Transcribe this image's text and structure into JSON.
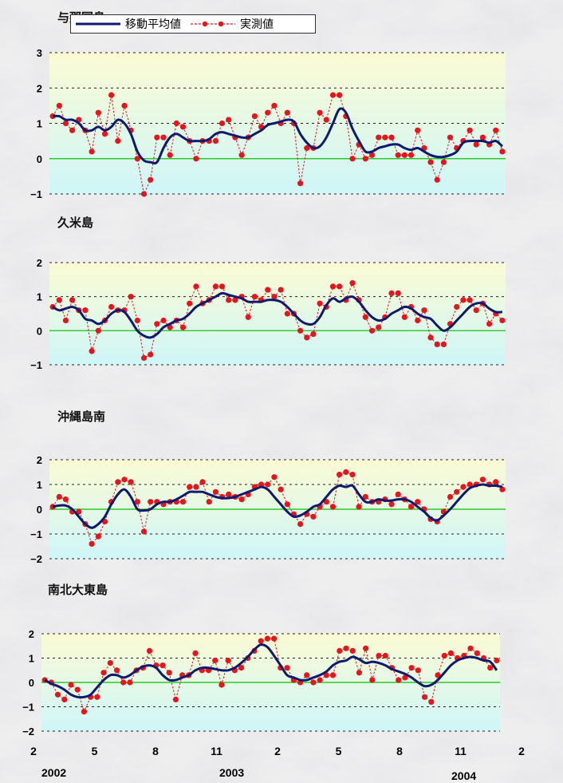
{
  "legend": {
    "moving_label": "移動平均値",
    "observed_label": "実測値",
    "moving_color": "#0d1a6e",
    "observed_color": "#e8141c"
  },
  "colors": {
    "plot_top": "#fbfbd4",
    "plot_bottom": "#cff6f8",
    "zero_line": "#2ec82e",
    "grid": "#222222"
  },
  "x_axis": {
    "tick_labels": [
      "2",
      "5",
      "8",
      "11",
      "2",
      "5",
      "8",
      "11",
      "2"
    ],
    "years": [
      "2002",
      "2003",
      "2004"
    ]
  },
  "chart_data": [
    {
      "type": "line",
      "title": "与那国島",
      "ylim": [
        -1,
        3
      ],
      "y_ticks": [
        -1,
        0,
        1,
        2,
        3
      ],
      "grid": true,
      "x_unit": "months from Feb 2002",
      "series": [
        {
          "name": "実測値",
          "values": [
            1.2,
            1.5,
            1.0,
            0.8,
            1.1,
            0.8,
            0.2,
            1.3,
            0.7,
            1.8,
            0.5,
            1.5,
            0.8,
            0.0,
            -1.0,
            -0.6,
            0.6,
            0.6,
            0.1,
            1.0,
            0.9,
            0.5,
            0.0,
            0.5,
            0.5,
            0.5,
            1.0,
            1.1,
            0.6,
            0.1,
            0.6,
            1.2,
            0.9,
            1.3,
            1.5,
            1.0,
            1.3,
            1.0,
            -0.7,
            0.3,
            0.3,
            1.3,
            1.1,
            1.8,
            1.8,
            1.2,
            0.0,
            0.4,
            0.0,
            0.1,
            0.6,
            0.6,
            0.6,
            0.1,
            0.1,
            0.1,
            0.8,
            0.3,
            -0.1,
            -0.6,
            -0.1,
            0.6,
            0.3,
            0.5,
            0.8,
            0.4,
            0.6,
            0.4,
            0.8,
            0.2
          ]
        },
        {
          "name": "移動平均値",
          "values": [
            1.2,
            1.2,
            1.1,
            1.1,
            1.0,
            0.8,
            0.8,
            0.9,
            0.8,
            0.9,
            1.1,
            1.0,
            0.7,
            0.2,
            -0.05,
            -0.1,
            -0.1,
            0.3,
            0.6,
            0.7,
            0.6,
            0.5,
            0.5,
            0.5,
            0.55,
            0.7,
            0.75,
            0.7,
            0.65,
            0.6,
            0.6,
            0.7,
            0.8,
            0.95,
            1.0,
            1.05,
            1.1,
            1.05,
            0.7,
            0.45,
            0.3,
            0.35,
            0.6,
            1.0,
            1.4,
            1.3,
            0.85,
            0.5,
            0.2,
            0.2,
            0.3,
            0.35,
            0.4,
            0.4,
            0.3,
            0.25,
            0.3,
            0.2,
            0.1,
            0.05,
            0.05,
            0.1,
            0.2,
            0.45,
            0.5,
            0.5,
            0.5,
            0.45,
            0.5,
            0.35
          ]
        }
      ]
    },
    {
      "type": "line",
      "title": "久米島",
      "ylim": [
        -1,
        2
      ],
      "y_ticks": [
        -1,
        0,
        1,
        2
      ],
      "grid": true,
      "x_unit": "months from Feb 2002",
      "series": [
        {
          "name": "実測値",
          "values": [
            0.7,
            0.9,
            0.3,
            0.9,
            0.6,
            0.6,
            -0.6,
            0.0,
            0.3,
            0.7,
            0.6,
            0.6,
            1.0,
            0.3,
            -0.8,
            -0.7,
            0.2,
            0.3,
            0.1,
            0.3,
            0.1,
            0.8,
            1.3,
            0.8,
            0.9,
            1.3,
            1.3,
            0.9,
            0.9,
            1.0,
            0.4,
            1.0,
            0.9,
            1.2,
            1.0,
            1.2,
            0.5,
            0.5,
            0.0,
            -0.2,
            -0.1,
            0.8,
            0.7,
            1.3,
            1.3,
            0.9,
            1.4,
            0.9,
            0.4,
            0.0,
            0.1,
            0.4,
            1.1,
            1.1,
            0.4,
            0.7,
            0.3,
            0.6,
            -0.2,
            -0.4,
            -0.4,
            0.2,
            0.7,
            0.9,
            0.9,
            0.6,
            0.8,
            0.2,
            0.5,
            0.3
          ]
        },
        {
          "name": "移動平均値",
          "values": [
            0.7,
            0.6,
            0.65,
            0.7,
            0.6,
            0.35,
            0.3,
            0.2,
            0.3,
            0.5,
            0.6,
            0.55,
            0.3,
            0.0,
            -0.15,
            -0.2,
            -0.1,
            0.1,
            0.2,
            0.3,
            0.35,
            0.5,
            0.7,
            0.8,
            0.9,
            1.0,
            1.1,
            1.05,
            1.0,
            0.95,
            0.85,
            0.85,
            0.85,
            0.9,
            0.9,
            0.85,
            0.7,
            0.5,
            0.3,
            0.2,
            0.2,
            0.4,
            0.75,
            0.95,
            0.85,
            0.95,
            1.0,
            0.85,
            0.6,
            0.4,
            0.3,
            0.35,
            0.5,
            0.6,
            0.7,
            0.65,
            0.5,
            0.4,
            0.35,
            0.15,
            0.0,
            0.1,
            0.3,
            0.5,
            0.7,
            0.8,
            0.8,
            0.65,
            0.55,
            0.55
          ]
        }
      ]
    },
    {
      "type": "line",
      "title": "沖縄島南",
      "ylim": [
        -2,
        2
      ],
      "y_ticks": [
        -2,
        -1,
        0,
        1,
        2
      ],
      "grid": true,
      "x_unit": "months from Feb 2002",
      "series": [
        {
          "name": "実測値",
          "values": [
            0.1,
            0.5,
            0.4,
            -0.1,
            -0.1,
            -0.6,
            -1.4,
            -1.1,
            -0.5,
            0.3,
            1.1,
            1.2,
            1.1,
            0.3,
            -0.9,
            0.3,
            0.3,
            0.2,
            0.3,
            0.3,
            0.3,
            0.9,
            0.9,
            1.1,
            0.3,
            0.7,
            0.5,
            0.6,
            0.5,
            0.4,
            0.6,
            0.9,
            1.0,
            1.0,
            1.3,
            0.8,
            0.2,
            -0.2,
            -0.6,
            -0.2,
            -0.3,
            0.1,
            0.3,
            0.1,
            1.4,
            1.5,
            1.4,
            0.1,
            0.5,
            0.3,
            0.3,
            0.4,
            0.2,
            0.6,
            0.4,
            0.1,
            0.3,
            0.0,
            -0.4,
            -0.5,
            -0.1,
            0.5,
            0.7,
            0.9,
            1.0,
            1.0,
            1.2,
            1.0,
            1.1,
            0.8
          ]
        },
        {
          "name": "移動平均値",
          "values": [
            0.1,
            0.15,
            0.15,
            0.0,
            -0.3,
            -0.6,
            -0.75,
            -0.6,
            -0.3,
            0.2,
            0.6,
            0.8,
            0.5,
            0.0,
            -0.05,
            0.0,
            0.2,
            0.3,
            0.3,
            0.4,
            0.55,
            0.7,
            0.7,
            0.7,
            0.6,
            0.5,
            0.45,
            0.45,
            0.5,
            0.6,
            0.7,
            0.8,
            0.9,
            0.8,
            0.5,
            0.2,
            -0.1,
            -0.3,
            -0.25,
            -0.1,
            0.1,
            0.2,
            0.5,
            0.8,
            0.95,
            0.9,
            0.95,
            0.6,
            0.3,
            0.3,
            0.4,
            0.35,
            0.35,
            0.4,
            0.4,
            0.3,
            0.1,
            -0.1,
            -0.35,
            -0.45,
            -0.25,
            0.0,
            0.3,
            0.6,
            0.85,
            0.95,
            1.0,
            0.95,
            0.95,
            0.9
          ]
        }
      ]
    },
    {
      "type": "line",
      "title": "南北大東島",
      "ylim": [
        -2,
        2
      ],
      "y_ticks": [
        -2,
        -1,
        0,
        1,
        2
      ],
      "grid": true,
      "x_unit": "months from Feb 2002",
      "series": [
        {
          "name": "実測値",
          "values": [
            0.1,
            0.0,
            -0.5,
            -0.7,
            -0.1,
            -0.3,
            -1.2,
            -0.6,
            -0.6,
            0.4,
            0.8,
            0.5,
            0.0,
            0.0,
            0.5,
            0.6,
            1.3,
            0.7,
            0.7,
            0.4,
            -0.7,
            0.3,
            0.3,
            1.2,
            0.5,
            0.5,
            0.9,
            -0.1,
            0.9,
            0.5,
            0.6,
            1.0,
            1.3,
            1.7,
            1.8,
            1.8,
            0.6,
            0.6,
            0.1,
            0.0,
            0.3,
            0.0,
            0.1,
            0.3,
            0.3,
            1.3,
            1.4,
            1.3,
            0.4,
            1.4,
            0.1,
            1.1,
            1.1,
            0.6,
            0.1,
            0.2,
            0.6,
            0.5,
            -0.6,
            -0.8,
            0.3,
            1.1,
            1.2,
            1.0,
            1.1,
            1.4,
            1.2,
            1.0,
            0.6,
            0.9
          ]
        },
        {
          "name": "移動平均値",
          "values": [
            0.1,
            -0.05,
            -0.15,
            -0.3,
            -0.5,
            -0.6,
            -0.6,
            -0.5,
            -0.2,
            0.1,
            0.3,
            0.3,
            0.2,
            0.3,
            0.5,
            0.65,
            0.7,
            0.6,
            0.3,
            0.1,
            0.1,
            0.2,
            0.3,
            0.5,
            0.6,
            0.6,
            0.55,
            0.5,
            0.5,
            0.6,
            0.8,
            1.05,
            1.35,
            1.55,
            1.45,
            1.1,
            0.7,
            0.3,
            0.2,
            0.1,
            0.1,
            0.2,
            0.3,
            0.45,
            0.7,
            0.85,
            0.9,
            1.05,
            0.95,
            0.8,
            0.85,
            0.8,
            0.7,
            0.55,
            0.45,
            0.35,
            0.2,
            0.0,
            -0.15,
            -0.1,
            0.1,
            0.4,
            0.7,
            0.9,
            1.0,
            1.05,
            1.0,
            0.9,
            0.85,
            0.5
          ]
        }
      ]
    }
  ]
}
